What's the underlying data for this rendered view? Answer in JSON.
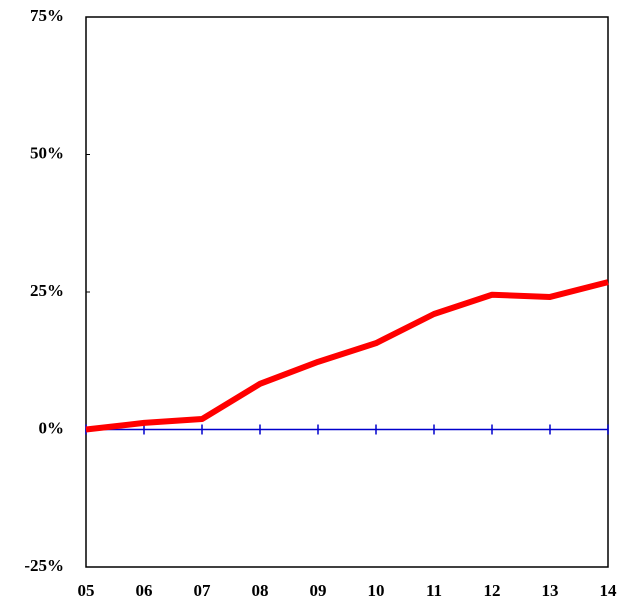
{
  "chart_data": {
    "type": "line",
    "categories": [
      "05",
      "06",
      "07",
      "08",
      "09",
      "10",
      "11",
      "12",
      "13",
      "14"
    ],
    "series": [
      {
        "color": "#ff0000",
        "values": [
          0,
          1.2,
          1.9,
          8.3,
          12.3,
          15.7,
          21,
          24.5,
          24.1,
          26.8
        ]
      }
    ],
    "ylim": [
      -25,
      75
    ],
    "yticks": [
      {
        "value": -25,
        "label": "-25%"
      },
      {
        "value": 0,
        "label": "0%"
      },
      {
        "value": 25,
        "label": "25%"
      },
      {
        "value": 50,
        "label": "50%"
      },
      {
        "value": 75,
        "label": "75%"
      }
    ],
    "zero_line_color": "#0000cc"
  }
}
